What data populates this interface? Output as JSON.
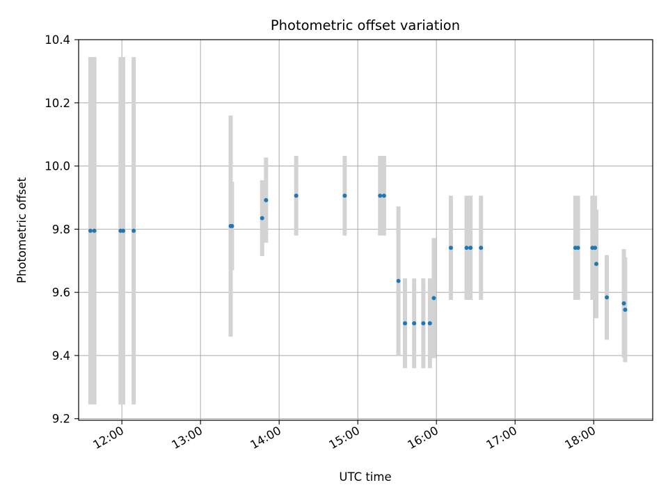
{
  "chart_data": {
    "type": "scatter",
    "title": "Photometric offset variation",
    "xlabel": "UTC time",
    "ylabel": "Photometric offset",
    "grid": true,
    "xlim": [
      "11:27",
      "18:45"
    ],
    "ylim": [
      9.195,
      10.4
    ],
    "x_ticks": [
      "12:00",
      "13:00",
      "14:00",
      "15:00",
      "16:00",
      "17:00",
      "18:00"
    ],
    "y_ticks": [
      "9.2",
      "9.4",
      "9.6",
      "9.8",
      "10.0",
      "10.2",
      "10.4"
    ],
    "point_color": "#1f77b4",
    "errorbar_color": "#d3d3d3",
    "points": [
      {
        "x": "11:36",
        "y": 9.795,
        "err": 0.55
      },
      {
        "x": "11:39",
        "y": 9.795,
        "err": 0.55
      },
      {
        "x": "11:59",
        "y": 9.795,
        "err": 0.55
      },
      {
        "x": "12:01",
        "y": 9.795,
        "err": 0.55
      },
      {
        "x": "12:09",
        "y": 9.795,
        "err": 0.55
      },
      {
        "x": "13:23",
        "y": 9.81,
        "err": 0.35
      },
      {
        "x": "13:24",
        "y": 9.81,
        "err": 0.14
      },
      {
        "x": "13:47",
        "y": 9.835,
        "err": 0.12
      },
      {
        "x": "13:50",
        "y": 9.892,
        "err": 0.135
      },
      {
        "x": "14:13",
        "y": 9.906,
        "err": 0.126
      },
      {
        "x": "14:50",
        "y": 9.906,
        "err": 0.126
      },
      {
        "x": "15:17",
        "y": 9.906,
        "err": 0.126
      },
      {
        "x": "15:20",
        "y": 9.906,
        "err": 0.126
      },
      {
        "x": "15:31",
        "y": 9.636,
        "err": 0.236
      },
      {
        "x": "15:36",
        "y": 9.502,
        "err": 0.142
      },
      {
        "x": "15:43",
        "y": 9.502,
        "err": 0.142
      },
      {
        "x": "15:50",
        "y": 9.502,
        "err": 0.142
      },
      {
        "x": "15:55",
        "y": 9.502,
        "err": 0.142
      },
      {
        "x": "15:58",
        "y": 9.582,
        "err": 0.19
      },
      {
        "x": "16:11",
        "y": 9.741,
        "err": 0.165
      },
      {
        "x": "16:23",
        "y": 9.741,
        "err": 0.165
      },
      {
        "x": "16:26",
        "y": 9.741,
        "err": 0.165
      },
      {
        "x": "16:34",
        "y": 9.741,
        "err": 0.165
      },
      {
        "x": "17:46",
        "y": 9.741,
        "err": 0.165
      },
      {
        "x": "17:48",
        "y": 9.741,
        "err": 0.165
      },
      {
        "x": "17:59",
        "y": 9.741,
        "err": 0.165
      },
      {
        "x": "18:01",
        "y": 9.741,
        "err": 0.165
      },
      {
        "x": "18:02",
        "y": 9.69,
        "err": 0.172
      },
      {
        "x": "18:10",
        "y": 9.584,
        "err": 0.134
      },
      {
        "x": "18:23",
        "y": 9.565,
        "err": 0.172
      },
      {
        "x": "18:24",
        "y": 9.545,
        "err": 0.166
      }
    ]
  }
}
